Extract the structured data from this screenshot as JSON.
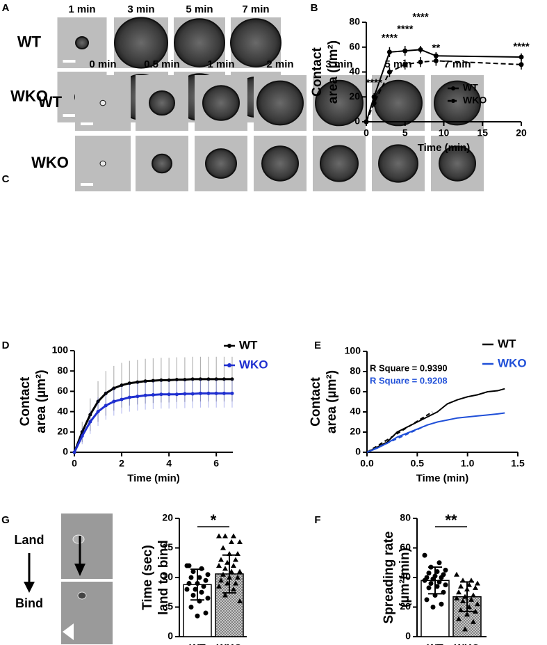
{
  "images": [
    {
      "panel": "A",
      "columns": [
        "1 min",
        "3 min",
        "5 min",
        "7 min"
      ],
      "rows": [
        "WT",
        "WKO"
      ]
    },
    {
      "panel": "C",
      "columns": [
        "0 min",
        "0.5 min",
        "1 min",
        "2 min",
        "3 min",
        "5 min",
        "7 min"
      ],
      "rows": [
        "WT",
        "WKO"
      ]
    },
    {
      "panel": "G",
      "steps": [
        "Land",
        "Bind"
      ]
    }
  ],
  "chart_data": [
    {
      "type": "line",
      "panel": "B",
      "ylabel": [
        "Contact",
        "area (µm²)"
      ],
      "xlabel": "Time (min)",
      "x": [
        0,
        1,
        3,
        5,
        7,
        9,
        20
      ],
      "xlim": [
        0,
        20
      ],
      "xticks": [
        0,
        5,
        10,
        15,
        20
      ],
      "ylim": [
        0,
        80
      ],
      "yticks": [
        0,
        20,
        40,
        60,
        80
      ],
      "marker": "circle",
      "series": [
        {
          "name": "WT",
          "color": "#000000",
          "dash": false,
          "values": [
            0,
            20,
            56,
            57,
            58,
            53,
            52
          ],
          "errors": [
            0,
            3,
            4,
            4,
            3,
            3,
            3
          ]
        },
        {
          "name": "WKO",
          "color": "#000000",
          "dash": true,
          "values": [
            0,
            15,
            40,
            46,
            48,
            49,
            46
          ],
          "errors": [
            0,
            3,
            4,
            4,
            4,
            4,
            4
          ]
        }
      ],
      "annotations": [
        {
          "text": "****",
          "x": 1,
          "y": 31
        },
        {
          "text": "****",
          "x": 3,
          "y": 67
        },
        {
          "text": "****",
          "x": 5,
          "y": 74
        },
        {
          "text": "****",
          "x": 7,
          "y": 84
        },
        {
          "text": "**",
          "x": 9,
          "y": 59
        },
        {
          "text": "****",
          "x": 20,
          "y": 60
        }
      ]
    },
    {
      "type": "line",
      "panel": "D",
      "ylabel": [
        "Contact",
        "area (µm²)"
      ],
      "xlabel": "Time (min)",
      "x": [
        0,
        0.33,
        0.67,
        1.0,
        1.33,
        1.67,
        2.0,
        2.33,
        2.67,
        3.0,
        3.33,
        3.67,
        4.0,
        4.33,
        4.67,
        5.0,
        5.33,
        5.67,
        6.0,
        6.33,
        6.67
      ],
      "xlim": [
        0,
        6.7
      ],
      "xticks": [
        0,
        2,
        4,
        6
      ],
      "ylim": [
        0,
        100
      ],
      "yticks": [
        0,
        20,
        40,
        60,
        80,
        100
      ],
      "marker": "circle",
      "series": [
        {
          "name": "WT",
          "color": "#000000",
          "dash": false,
          "values": [
            0,
            20,
            37,
            50,
            58,
            63,
            66,
            68,
            69,
            70,
            70.5,
            71,
            71,
            71.5,
            71.5,
            72,
            72,
            72,
            72,
            72,
            72
          ],
          "errors": [
            0,
            10,
            16,
            20,
            22,
            22,
            22,
            22,
            22,
            22,
            22,
            22,
            22,
            22,
            22,
            22,
            22,
            22,
            22,
            22,
            22
          ]
        },
        {
          "name": "WKO",
          "color": "#1f2fd0",
          "dash": false,
          "values": [
            0,
            16,
            30,
            40,
            46,
            50,
            52,
            54,
            55,
            56,
            56.5,
            57,
            57,
            57,
            57.5,
            57.5,
            58,
            58,
            58,
            58,
            58
          ],
          "errors": [
            0,
            8,
            12,
            14,
            14,
            14,
            14,
            14,
            14,
            14,
            14,
            14,
            14,
            14,
            14,
            14,
            14,
            14,
            14,
            14,
            14
          ]
        }
      ]
    },
    {
      "type": "line",
      "panel": "E",
      "ylabel": [
        "Contact",
        "area (µm²)"
      ],
      "xlabel": "Time (min)",
      "x": [
        0,
        0.1,
        0.2,
        0.3,
        0.4,
        0.5,
        0.6,
        0.7,
        0.8,
        0.9,
        1.0,
        1.1,
        1.2,
        1.3,
        1.37
      ],
      "xlim": [
        0,
        1.5
      ],
      "xticks": [
        {
          "value": 0,
          "label": "0.0"
        },
        0.5,
        {
          "value": 1,
          "label": "1.0"
        },
        1.5
      ],
      "ylim": [
        0,
        100
      ],
      "yticks": [
        0,
        20,
        40,
        60,
        80,
        100
      ],
      "series": [
        {
          "name": "WT",
          "color": "#000000",
          "dash": false,
          "values": [
            0,
            5,
            10,
            20,
            25,
            30,
            35,
            40,
            48,
            52,
            55,
            57,
            60,
            61,
            63
          ]
        },
        {
          "name": "WKO",
          "color": "#1f4fd8",
          "dash": false,
          "values": [
            0,
            4,
            9,
            15,
            19,
            23,
            27,
            30,
            32,
            34,
            35,
            36,
            37,
            38,
            39
          ]
        }
      ],
      "fits": [
        {
          "color": "#000000",
          "x": [
            0,
            0.65
          ],
          "values": [
            0,
            40
          ]
        },
        {
          "color": "#1f4fd8",
          "x": [
            0,
            0.6
          ],
          "values": [
            0,
            27
          ]
        }
      ],
      "annotations": [
        {
          "text": "R Square = 0.9390",
          "color": "#000000"
        },
        {
          "text": "R Square = 0.9208",
          "color": "#1f4fd8"
        }
      ]
    },
    {
      "type": "bar",
      "ylabel": [
        "Time (sec)",
        "land to bind"
      ],
      "categories": [
        "WT",
        "WKO"
      ],
      "values": [
        8.8,
        10.6
      ],
      "errors": [
        2.6,
        3.2
      ],
      "colors": [
        "#ffffff",
        "#b5b5b5"
      ],
      "markers": [
        "circle",
        "triangle"
      ],
      "ylim": [
        0,
        20
      ],
      "yticks": [
        0,
        5,
        10,
        15,
        20
      ],
      "annotation": "*",
      "points": [
        [
          12,
          11.5,
          11,
          10.5,
          10,
          10,
          9.5,
          9,
          9,
          8.5,
          8,
          8,
          7.5,
          7,
          6.5,
          6,
          5,
          4,
          3.5,
          12
        ],
        [
          17,
          17,
          17,
          16,
          16,
          15,
          14,
          14,
          13,
          13,
          12.5,
          12,
          12,
          11.5,
          11,
          11,
          10.5,
          10,
          10,
          9.5,
          9,
          9,
          8.5,
          8,
          7,
          6
        ]
      ]
    },
    {
      "type": "bar",
      "panel": "F",
      "ylabel": [
        "Spreading rate",
        "(µm²/min)"
      ],
      "categories": [
        "WT",
        "WKO"
      ],
      "values": [
        38,
        27
      ],
      "errors": [
        9,
        10
      ],
      "colors": [
        "#ffffff",
        "#b5b5b5"
      ],
      "markers": [
        "circle",
        "triangle"
      ],
      "ylim": [
        0,
        80
      ],
      "yticks": [
        0,
        20,
        40,
        60,
        80
      ],
      "annotation": "**",
      "points": [
        [
          55,
          50,
          47,
          45,
          44,
          43,
          42,
          41,
          40,
          40,
          39,
          38,
          37,
          36,
          35,
          34,
          33,
          30,
          28,
          25,
          22,
          20
        ],
        [
          42,
          38,
          38,
          36,
          35,
          34,
          33,
          32,
          30,
          28,
          27,
          26,
          25,
          24,
          22,
          20,
          18,
          17,
          15,
          12,
          10,
          5
        ]
      ]
    }
  ]
}
